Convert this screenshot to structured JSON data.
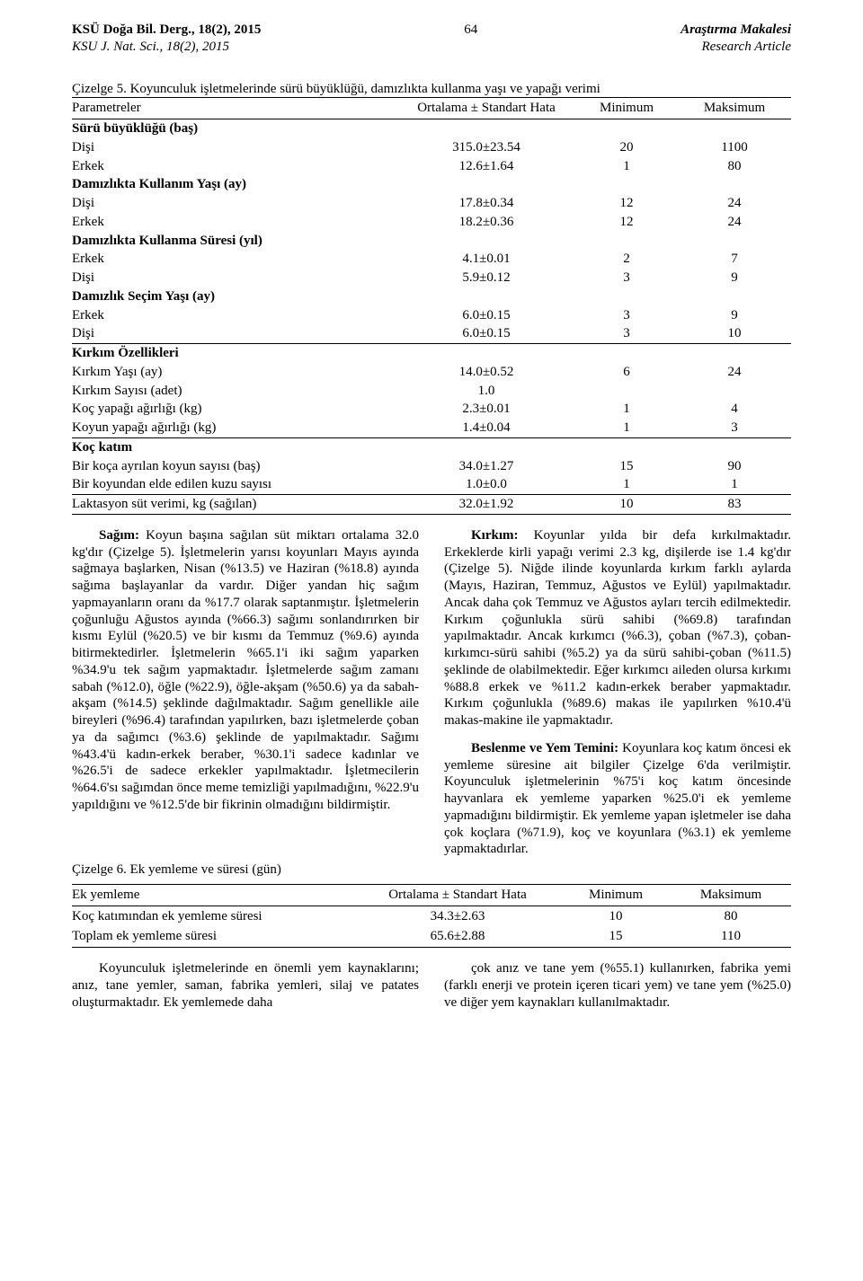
{
  "header": {
    "left_line1": "KSÜ Doğa Bil. Derg., 18(2), 2015",
    "left_line2": "KSU J. Nat. Sci., 18(2), 2015",
    "page_number": "64",
    "right_line1": "Araştırma Makalesi",
    "right_line2": "Research Article"
  },
  "table5": {
    "caption": "Çizelge 5. Koyunculuk işletmelerinde sürü büyüklüğü, damızlıkta kullanma yaşı ve yapağı verimi",
    "columns": [
      "Parametreler",
      "Ortalama ± Standart Hata",
      "Minimum",
      "Maksimum"
    ],
    "sections": [
      {
        "title": "Sürü büyüklüğü (baş)",
        "rows": [
          {
            "p": "Dişi",
            "m": "315.0±23.54",
            "min": "20",
            "max": "1100"
          },
          {
            "p": "Erkek",
            "m": "12.6±1.64",
            "min": "1",
            "max": "80"
          }
        ]
      },
      {
        "title": "Damızlıkta Kullanım Yaşı (ay)",
        "rows": [
          {
            "p": "Dişi",
            "m": "17.8±0.34",
            "min": "12",
            "max": "24"
          },
          {
            "p": "Erkek",
            "m": "18.2±0.36",
            "min": "12",
            "max": "24"
          }
        ]
      },
      {
        "title": "Damızlıkta Kullanma Süresi (yıl)",
        "rows": [
          {
            "p": "Erkek",
            "m": "4.1±0.01",
            "min": "2",
            "max": "7"
          },
          {
            "p": "Dişi",
            "m": "5.9±0.12",
            "min": "3",
            "max": "9"
          }
        ]
      },
      {
        "title": "Damızlık Seçim Yaşı (ay)",
        "rows": [
          {
            "p": "Erkek",
            "m": "6.0±0.15",
            "min": "3",
            "max": "9"
          },
          {
            "p": "Dişi",
            "m": "6.0±0.15",
            "min": "3",
            "max": "10"
          }
        ]
      },
      {
        "title": "Kırkım Özellikleri",
        "rule": true,
        "rows": [
          {
            "p": "Kırkım Yaşı (ay)",
            "m": "14.0±0.52",
            "min": "6",
            "max": "24"
          },
          {
            "p": "Kırkım Sayısı (adet)",
            "m": "1.0",
            "min": "",
            "max": ""
          },
          {
            "p": "Koç yapağı ağırlığı (kg)",
            "m": "2.3±0.01",
            "min": "1",
            "max": "4"
          },
          {
            "p": "Koyun yapağı ağırlığı (kg)",
            "m": "1.4±0.04",
            "min": "1",
            "max": "3"
          }
        ]
      },
      {
        "title": "Koç katım",
        "rule": true,
        "rows": [
          {
            "p": "Bir koça ayrılan koyun sayısı (baş)",
            "m": "34.0±1.27",
            "min": "15",
            "max": "90"
          },
          {
            "p": "Bir koyundan elde edilen kuzu sayısı",
            "m": "1.0±0.0",
            "min": "1",
            "max": "1"
          }
        ]
      }
    ],
    "footer": {
      "p": "Laktasyon süt verimi, kg (sağılan)",
      "m": "32.0±1.92",
      "min": "10",
      "max": "83"
    }
  },
  "body": {
    "p1": "Sağım: Koyun başına sağılan süt miktarı ortalama 32.0 kg'dır (Çizelge 5). İşletmelerin yarısı koyunları Mayıs ayında sağmaya başlarken, Nisan (%13.5) ve Haziran (%18.8) ayında sağıma başlayanlar da vardır. Diğer yandan hiç sağım yapmayanların oranı da %17.7 olarak saptanmıştır. İşletmelerin çoğunluğu Ağustos ayında (%66.3) sağımı sonlandırırken bir kısmı Eylül (%20.5) ve bir kısmı da Temmuz (%9.6) ayında bitirmektedirler. İşletmelerin %65.1'i iki sağım yaparken %34.9'u tek sağım yapmaktadır. İşletmelerde sağım zamanı sabah (%12.0), öğle (%22.9), öğle-akşam (%50.6) ya da sabah-akşam (%14.5) şeklinde dağılmaktadır. Sağım genellikle aile bireyleri (%96.4) tarafından yapılırken, bazı işletmelerde çoban ya da sağımcı (%3.6) şeklinde de yapılmaktadır. Sağımı %43.4'ü kadın-erkek beraber, %30.1'i sadece kadınlar ve %26.5'i de sadece erkekler yapılmaktadır. İşletmecilerin %64.6'sı sağımdan önce meme temizliği yapılmadığını, %22.9'u yapıldığını ve %12.5'de bir fikrinin olmadığını bildirmiştir.",
    "p1_label": "Sağım:",
    "p2": "Kırkım: Koyunlar yılda bir defa kırkılmaktadır. Erkeklerde kirli yapağı verimi 2.3 kg, dişilerde ise 1.4 kg'dır (Çizelge 5). Niğde ilinde koyunlarda kırkım farklı aylarda (Mayıs, Haziran, Temmuz, Ağustos ve Eylül) yapılmaktadır. Ancak daha çok Temmuz ve Ağustos ayları tercih edilmektedir. Kırkım çoğunlukla sürü sahibi (%69.8) tarafından yapılmaktadır. Ancak kırkımcı (%6.3), çoban (%7.3), çoban-kırkımcı-sürü sahibi (%5.2) ya da sürü sahibi-çoban (%11.5) şeklinde de olabilmektedir. Eğer kırkımcı aileden olursa kırkımı %88.8 erkek ve %11.2 kadın-erkek beraber yapmaktadır. Kırkım çoğunlukla (%89.6) makas ile yapılırken %10.4'ü makas-makine ile yapmaktadır.",
    "p2_label": "Kırkım:",
    "p3": "Beslenme ve Yem Temini: Koyunlara koç katım öncesi ek yemleme süresine ait bilgiler Çizelge 6'da verilmiştir. Koyunculuk işletmelerinin %75'i koç katım öncesinde hayvanlara ek yemleme yaparken %25.0'i ek yemleme yapmadığını bildirmiştir. Ek yemleme yapan işletmeler ise daha çok koçlara (%71.9), koç ve koyunlara (%3.1) ek yemleme yapmaktadırlar.",
    "p3_label": "Beslenme ve Yem Temini:"
  },
  "table6": {
    "caption": "Çizelge 6. Ek yemleme ve süresi (gün)",
    "columns": [
      "Ek yemleme",
      "Ortalama ± Standart Hata",
      "Minimum",
      "Maksimum"
    ],
    "rows": [
      {
        "p": "Koç katımından ek yemleme süresi",
        "m": "34.3±2.63",
        "min": "10",
        "max": "80"
      },
      {
        "p": "Toplam ek yemleme süresi",
        "m": "65.6±2.88",
        "min": "15",
        "max": "110"
      }
    ]
  },
  "body2": {
    "p1": "Koyunculuk işletmelerinde en önemli yem kaynaklarını; anız, tane yemler, saman, fabrika yemleri, silaj ve patates oluşturmaktadır. Ek yemlemede daha",
    "p2": "çok anız ve tane yem (%55.1) kullanırken, fabrika yemi (farklı enerji ve protein içeren ticari yem) ve tane yem (%25.0) ve diğer yem kaynakları kullanılmaktadır."
  }
}
